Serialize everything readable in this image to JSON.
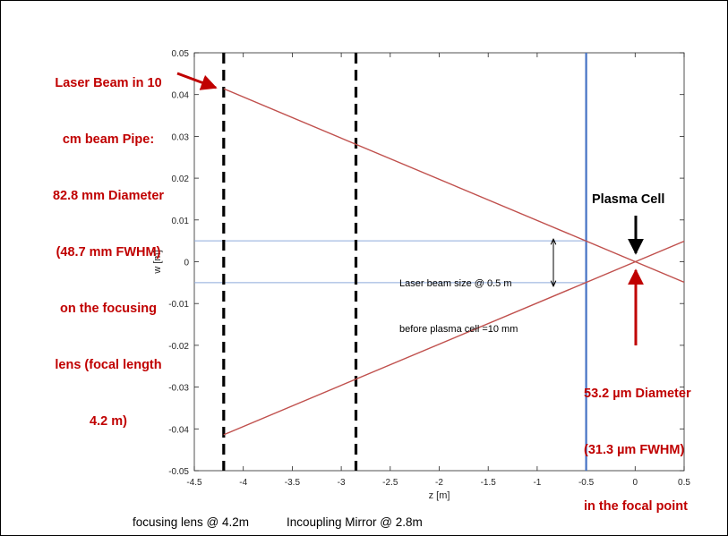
{
  "chart_data": {
    "type": "line",
    "xlabel": "z [m]",
    "ylabel": "w [m]",
    "xlim": [
      -4.5,
      0.5
    ],
    "ylim": [
      -0.05,
      0.05
    ],
    "xticks": [
      -4.5,
      -4,
      -3.5,
      -3,
      -2.5,
      -2,
      -1.5,
      -1,
      -0.5,
      0,
      0.5
    ],
    "xtick_labels": [
      "-4.5",
      "-4",
      "-3.5",
      "-3",
      "-2.5",
      "-2",
      "-1.5",
      "-1",
      "-0.5",
      "0",
      "0.5"
    ],
    "yticks": [
      0.05,
      0.04,
      0.03,
      0.02,
      0.01,
      0,
      -0.01,
      -0.02,
      -0.03,
      -0.04,
      -0.05
    ],
    "ytick_labels": [
      "0.05",
      "0.04",
      "0.03",
      "0.02",
      "0.01",
      "0",
      "-0.01",
      "-0.02",
      "-0.03",
      "-0.04",
      "-0.05"
    ],
    "grid": false,
    "series": [
      {
        "x": [
          -4.2,
          0.5
        ],
        "y": [
          0.0414,
          -0.0049
        ],
        "color": "#c0504d"
      },
      {
        "x": [
          -4.2,
          0.5
        ],
        "y": [
          -0.0414,
          0.0049
        ],
        "color": "#c0504d"
      }
    ],
    "hlines": [
      {
        "y": 0.005,
        "xmin": -4.5,
        "xmax": -0.5,
        "color": "#8eaadb"
      },
      {
        "y": -0.005,
        "xmin": -4.5,
        "xmax": -0.5,
        "color": "#8eaadb"
      }
    ],
    "vlines": [
      {
        "x": -4.2,
        "style": "dashed",
        "color": "#000000"
      },
      {
        "x": -2.85,
        "style": "dashed",
        "color": "#000000"
      },
      {
        "x": -0.5,
        "style": "solid",
        "color": "#4472c4"
      }
    ],
    "annotations": {
      "left_label": [
        "Laser Beam in 10",
        "cm beam Pipe:",
        "82.8 mm Diameter",
        "(48.7 mm FWHM)",
        "on the focusing",
        "lens (focal length",
        "4.2 m)"
      ],
      "plasma_label": "Plasma Cell",
      "focal_label": [
        "53.2 µm Diameter",
        "(31.3 µm FWHM)",
        "in the focal point"
      ],
      "beam_size_label": [
        "Laser beam size @ 0.5 m",
        "before plasma cell =10 mm"
      ],
      "caption_lens": "focusing lens @ 4.2m",
      "caption_mirror": "Incoupling Mirror @ 2.8m"
    }
  },
  "colors": {
    "annotation_red": "#c00000",
    "beam": "#c0504d",
    "blue_line": "#4472c4",
    "guide_line": "#8eaadb"
  }
}
